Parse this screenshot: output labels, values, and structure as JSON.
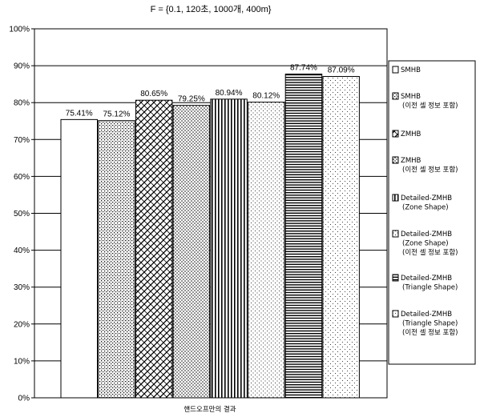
{
  "chart_data": {
    "type": "bar",
    "title": "F = {0.1, 120초, 1000개, 400m}",
    "xlabel": "핸드오프만의 결과",
    "ylabel": "",
    "ylim": [
      0,
      100
    ],
    "yticks": [
      "0%",
      "10%",
      "20%",
      "30%",
      "40%",
      "50%",
      "60%",
      "70%",
      "80%",
      "90%",
      "100%"
    ],
    "grid": "horizontal",
    "legend_placement": "right",
    "series": [
      {
        "name": "SMHB",
        "name_lines": [
          "SMHB"
        ],
        "value": 75.41,
        "label": "75.41%",
        "pattern": "white"
      },
      {
        "name": "SMHB (이전 셀 정보 포함)",
        "name_lines": [
          "SMHB",
          "(이전 셀 정보 포함)"
        ],
        "value": 75.12,
        "label": "75.12%",
        "pattern": "crosshatch-dots"
      },
      {
        "name": "ZMHB",
        "name_lines": [
          "ZMHB"
        ],
        "value": 80.65,
        "label": "80.65%",
        "pattern": "brick"
      },
      {
        "name": "ZMHB (이전 셀 정보 포함)",
        "name_lines": [
          "ZMHB",
          "(이전 셀 정보 포함)"
        ],
        "value": 79.25,
        "label": "79.25%",
        "pattern": "dots-dense"
      },
      {
        "name": "Detailed-ZMHB (Zone Shape)",
        "name_lines": [
          "Detailed-ZMHB",
          "(Zone Shape)"
        ],
        "value": 80.94,
        "label": "80.94%",
        "pattern": "vertical-lines"
      },
      {
        "name": "Detailed-ZMHB (Zone Shape) (이전 셀 정보 포함)",
        "name_lines": [
          "Detailed-ZMHB",
          "(Zone Shape)",
          "(이전 셀 정보 포함)"
        ],
        "value": 80.12,
        "label": "80.12%",
        "pattern": "dots-light"
      },
      {
        "name": "Detailed-ZMHB (Triangle Shape)",
        "name_lines": [
          "Detailed-ZMHB",
          "(Triangle Shape)"
        ],
        "value": 87.74,
        "label": "87.74%",
        "pattern": "horizontal-lines"
      },
      {
        "name": "Detailed-ZMHB (Triangle Shape) (이전 셀 정보 포함)",
        "name_lines": [
          "Detailed-ZMHB",
          "(Triangle Shape)",
          "(이전 셀 정보 포함)"
        ],
        "value": 87.09,
        "label": "87.09%",
        "pattern": "dots-sparse"
      }
    ]
  }
}
